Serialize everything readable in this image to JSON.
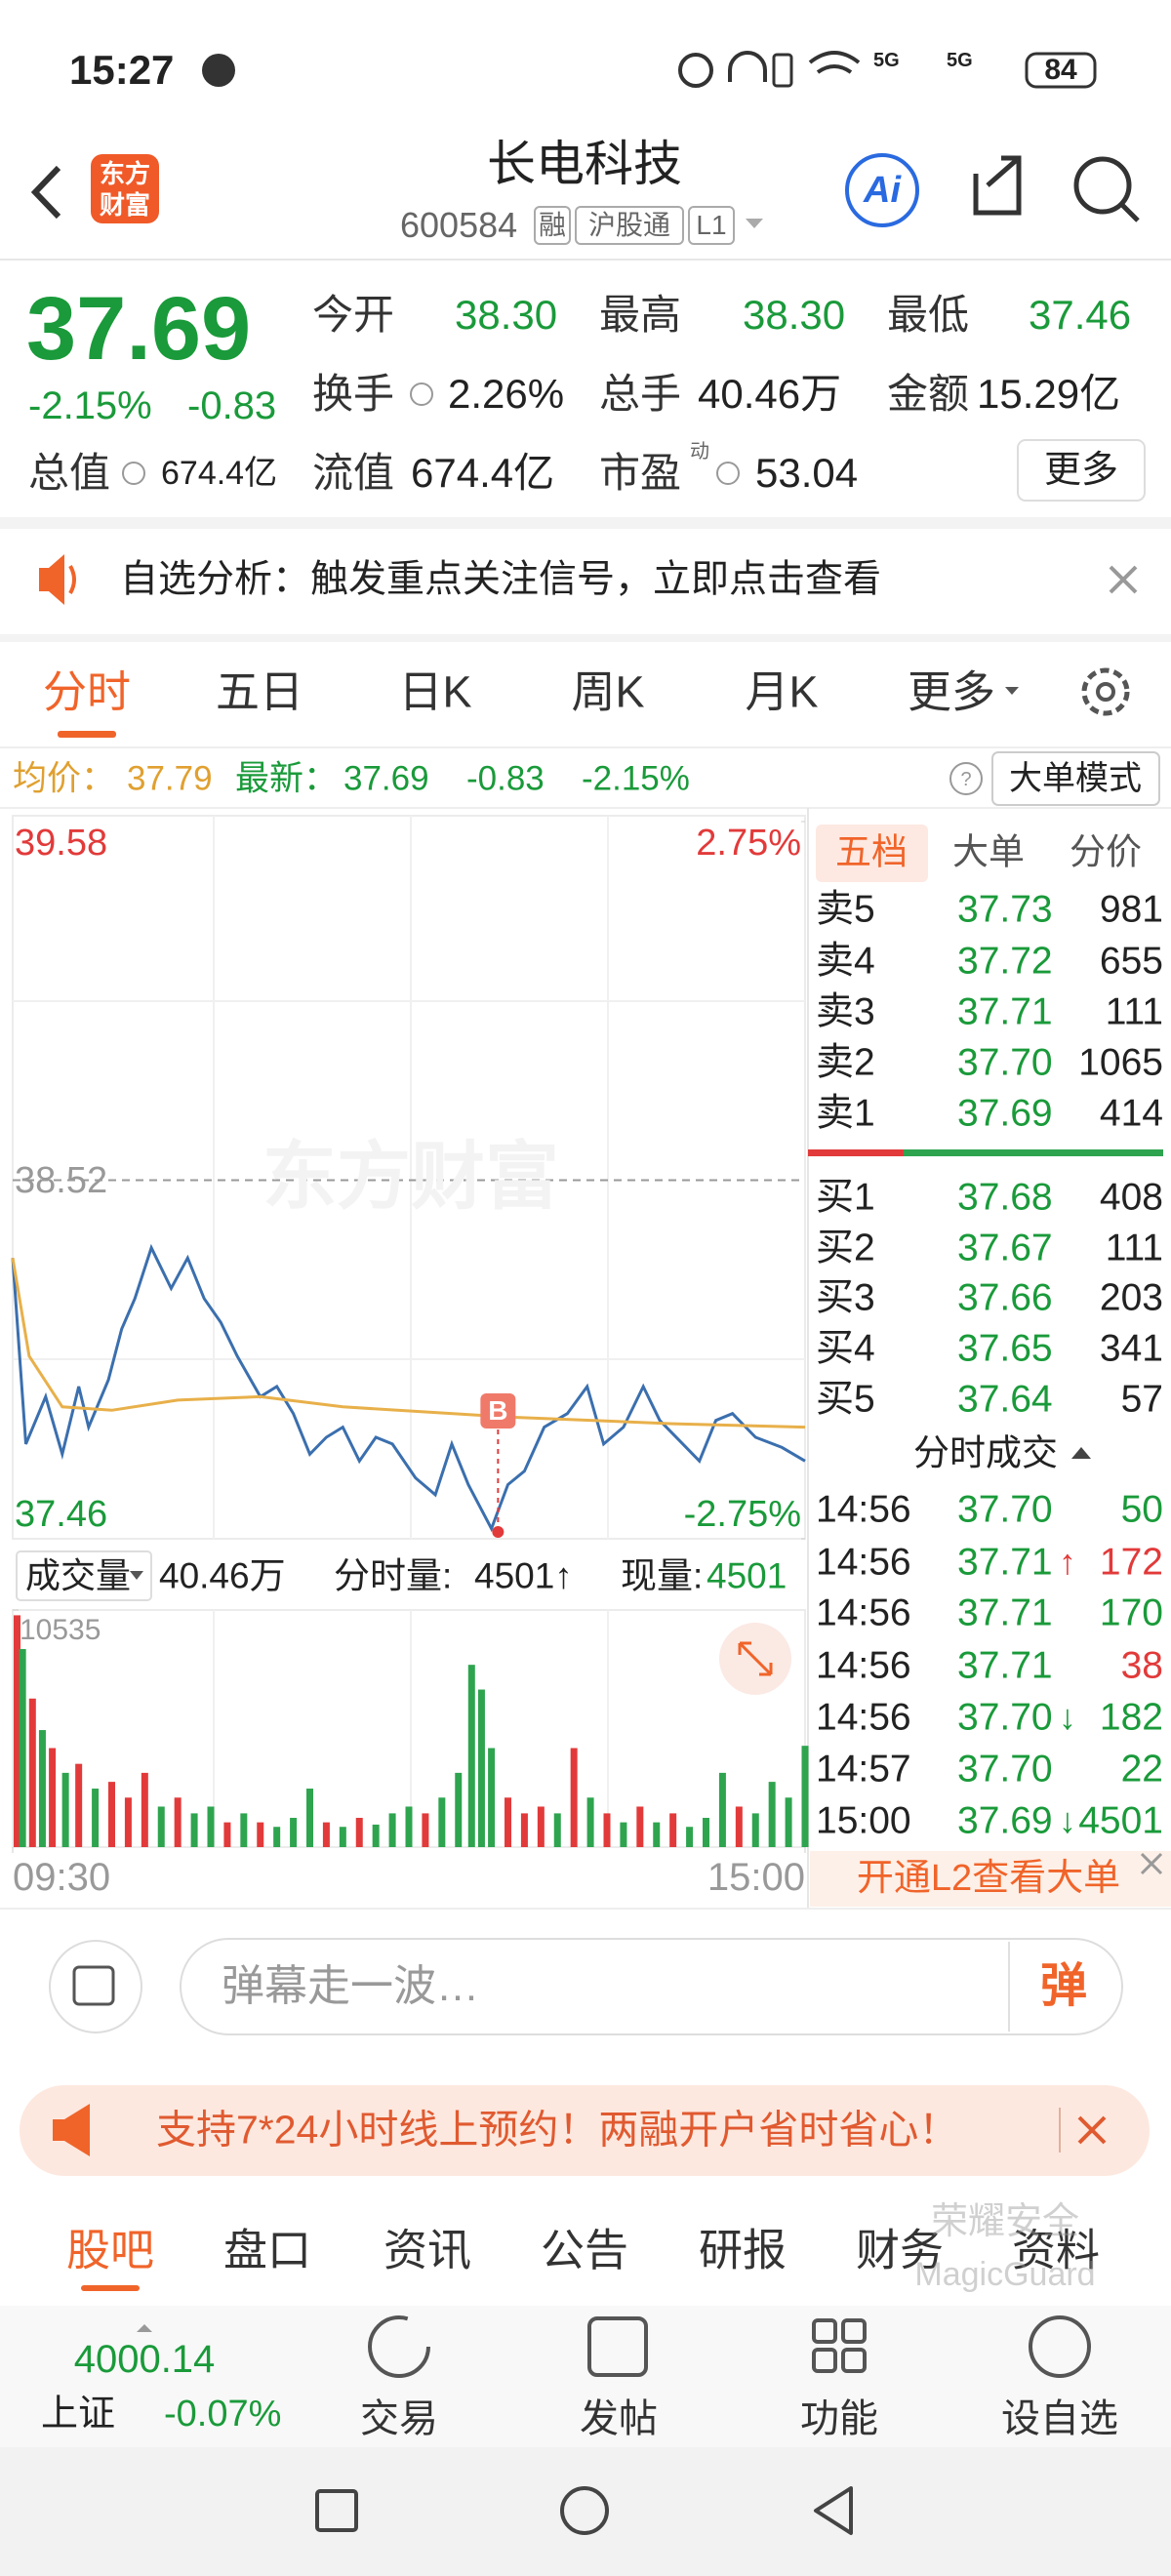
{
  "status_bar": {
    "time": "15:27",
    "network": [
      "5G",
      "5G"
    ],
    "battery": "84"
  },
  "header": {
    "logo": [
      "东方",
      "财富"
    ],
    "title": "长电科技",
    "code": "600584",
    "tags": [
      "融",
      "沪股通",
      "L1"
    ],
    "ai": "Ai"
  },
  "quote": {
    "price": "37.69",
    "change_pct": "-2.15%",
    "change": "-0.83",
    "stats": [
      {
        "label": "今开",
        "value": "38.30"
      },
      {
        "label": "最高",
        "value": "38.30"
      },
      {
        "label": "最低",
        "value": "37.46"
      },
      {
        "label": "换手",
        "value": "2.26%"
      },
      {
        "label": "总手",
        "value": "40.46万"
      },
      {
        "label": "金额",
        "value": "15.29亿"
      },
      {
        "label": "总值",
        "value": "674.4亿"
      },
      {
        "label": "流值",
        "value": "674.4亿"
      },
      {
        "label": "市盈",
        "sup": "动",
        "value": "53.04"
      }
    ],
    "more": "更多"
  },
  "notice": {
    "text": "自选分析：触发重点关注信号，立即点击查看"
  },
  "tabs": [
    "分时",
    "五日",
    "日K",
    "周K",
    "月K",
    "更多"
  ],
  "info_bar": {
    "avg_label": "均价：",
    "avg": "37.79",
    "last_label": "最新：",
    "last": "37.69",
    "change": "-0.83",
    "change_pct": "-2.15%",
    "mode_button": "大单模式"
  },
  "watermark_logo": "东方财富",
  "chart_data": [
    {
      "type": "line",
      "xlim": [
        0,
        240
      ],
      "xticks": [
        {
          "value": 0,
          "label": "09:30"
        },
        {
          "value": 240,
          "label": "15:00"
        }
      ],
      "ylim": [
        37.46,
        39.58
      ],
      "yticks": [
        37.46,
        38.52,
        39.58
      ],
      "y2lim": [
        -2.75,
        2.75
      ],
      "y2ticks": [
        {
          "value": -2.75,
          "label": "-2.75%"
        },
        {
          "value": 2.75,
          "label": "2.75%"
        }
      ],
      "series": [
        {
          "color": "#3b6fae",
          "x": [
            0,
            4,
            10,
            15,
            20,
            23,
            29,
            33,
            37,
            42,
            48,
            53,
            58,
            63,
            68,
            75,
            80,
            85,
            90,
            95,
            100,
            105,
            110,
            115,
            122,
            128,
            133,
            138,
            145,
            150,
            155,
            161,
            168,
            174,
            179,
            185,
            191,
            196,
            203,
            208,
            213,
            218,
            225,
            233,
            240
          ],
          "values": [
            38.29,
            37.74,
            37.88,
            37.71,
            37.91,
            37.79,
            37.93,
            38.08,
            38.17,
            38.32,
            38.2,
            38.29,
            38.17,
            38.1,
            38.0,
            37.88,
            37.91,
            37.83,
            37.71,
            37.76,
            37.79,
            37.69,
            37.76,
            37.74,
            37.64,
            37.59,
            37.74,
            37.62,
            37.49,
            37.62,
            37.66,
            37.79,
            37.83,
            37.91,
            37.74,
            37.79,
            37.91,
            37.81,
            37.74,
            37.69,
            37.81,
            37.83,
            37.76,
            37.73,
            37.69
          ]
        },
        {
          "color": "#e8b04a",
          "x": [
            0,
            5,
            15,
            30,
            50,
            75,
            100,
            150,
            200,
            240
          ],
          "values": [
            38.29,
            38.0,
            37.85,
            37.84,
            37.87,
            37.88,
            37.85,
            37.82,
            37.8,
            37.79
          ]
        }
      ],
      "annotations": [
        {
          "text": "B",
          "x": 147
        }
      ]
    },
    {
      "type": "bar",
      "xlim": [
        0,
        240
      ],
      "ylim": [
        0,
        10535
      ],
      "yticks": [
        10535
      ],
      "x": [
        0,
        3,
        6,
        9,
        12,
        16,
        20,
        25,
        30,
        35,
        40,
        45,
        50,
        55,
        60,
        65,
        70,
        75,
        80,
        85,
        90,
        95,
        100,
        105,
        110,
        115,
        120,
        125,
        130,
        135,
        139,
        142,
        145,
        150,
        155,
        160,
        165,
        170,
        175,
        180,
        185,
        190,
        195,
        200,
        205,
        210,
        215,
        220,
        225,
        230,
        235,
        240
      ],
      "values": [
        10300,
        8800,
        6600,
        5200,
        4400,
        3300,
        3700,
        2600,
        2900,
        2200,
        3300,
        1800,
        2200,
        1500,
        1800,
        1100,
        1500,
        1100,
        900,
        1300,
        2600,
        1100,
        900,
        1300,
        1000,
        1500,
        1800,
        1500,
        2200,
        3300,
        8100,
        7000,
        4400,
        2200,
        1500,
        1800,
        1500,
        4400,
        2200,
        1500,
        1100,
        1800,
        1100,
        1500,
        900,
        1300,
        3300,
        1800,
        1500,
        2900,
        2200,
        4501
      ],
      "colors": [
        "#e23a3a",
        "#2ea44f",
        "#e23a3a",
        "#2ea44f",
        "#e23a3a",
        "#2ea44f",
        "#e23a3a",
        "#2ea44f",
        "#e23a3a",
        "#e23a3a",
        "#e23a3a",
        "#2ea44f",
        "#e23a3a",
        "#2ea44f",
        "#2ea44f",
        "#e23a3a",
        "#2ea44f",
        "#e23a3a",
        "#2ea44f",
        "#2ea44f",
        "#2ea44f",
        "#e23a3a",
        "#2ea44f",
        "#e23a3a",
        "#2ea44f",
        "#2ea44f",
        "#2ea44f",
        "#e23a3a",
        "#2ea44f",
        "#2ea44f",
        "#2ea44f",
        "#2ea44f",
        "#2ea44f",
        "#e23a3a",
        "#e23a3a",
        "#e23a3a",
        "#2ea44f",
        "#e23a3a",
        "#2ea44f",
        "#e23a3a",
        "#2ea44f",
        "#e23a3a",
        "#2ea44f",
        "#e23a3a",
        "#2ea44f",
        "#2ea44f",
        "#2ea44f",
        "#e23a3a",
        "#2ea44f",
        "#2ea44f",
        "#2ea44f",
        "#2ea44f"
      ]
    }
  ],
  "volume_bar": {
    "label": "成交量",
    "total": "40.46万",
    "minute_label": "分时量:",
    "minute": "4501↑",
    "current_label": "现量:",
    "current": "4501"
  },
  "order_book": {
    "tabs": [
      "五档",
      "大单",
      "分价"
    ],
    "asks": [
      {
        "label": "卖5",
        "price": "37.73",
        "volume": "981"
      },
      {
        "label": "卖4",
        "price": "37.72",
        "volume": "655"
      },
      {
        "label": "卖3",
        "price": "37.71",
        "volume": "111"
      },
      {
        "label": "卖2",
        "price": "37.70",
        "volume": "1065"
      },
      {
        "label": "卖1",
        "price": "37.69",
        "volume": "414"
      }
    ],
    "bids": [
      {
        "label": "买1",
        "price": "37.68",
        "volume": "408"
      },
      {
        "label": "买2",
        "price": "37.67",
        "volume": "111"
      },
      {
        "label": "买3",
        "price": "37.66",
        "volume": "203"
      },
      {
        "label": "买4",
        "price": "37.65",
        "volume": "341"
      },
      {
        "label": "买5",
        "price": "37.64",
        "volume": "57"
      }
    ]
  },
  "trades": {
    "title": "分时成交",
    "rows": [
      {
        "time": "14:56",
        "price": "37.70",
        "arrow": "",
        "volume": "50",
        "vol_color": "#1a9a3a"
      },
      {
        "time": "14:56",
        "price": "37.71",
        "arrow": "↑",
        "volume": "172",
        "vol_color": "#e23a3a"
      },
      {
        "time": "14:56",
        "price": "37.71",
        "arrow": "",
        "volume": "170",
        "vol_color": "#1a9a3a"
      },
      {
        "time": "14:56",
        "price": "37.71",
        "arrow": "",
        "volume": "38",
        "vol_color": "#e23a3a"
      },
      {
        "time": "14:56",
        "price": "37.70",
        "arrow": "↓",
        "volume": "182",
        "vol_color": "#1a9a3a"
      },
      {
        "time": "14:57",
        "price": "37.70",
        "arrow": "",
        "volume": "22",
        "vol_color": "#1a9a3a"
      },
      {
        "time": "15:00",
        "price": "37.69",
        "arrow": "↓",
        "volume": "4501",
        "vol_color": "#1a9a3a"
      }
    ]
  },
  "l2_banner": "开通L2查看大单",
  "comment": {
    "placeholder": "弹幕走一波…",
    "button": "弹"
  },
  "ad": "支持7*24小时线上预约！两融开户省时省心！",
  "bottom_tabs": [
    "股吧",
    "盘口",
    "资讯",
    "公告",
    "研报",
    "财务",
    "资料"
  ],
  "watermark": [
    "荣耀安全",
    "MagicGuard"
  ],
  "index": {
    "value": "4000.14",
    "name": "上证",
    "change": "-0.07%"
  },
  "toolbar": [
    "交易",
    "发帖",
    "功能",
    "设自选"
  ]
}
